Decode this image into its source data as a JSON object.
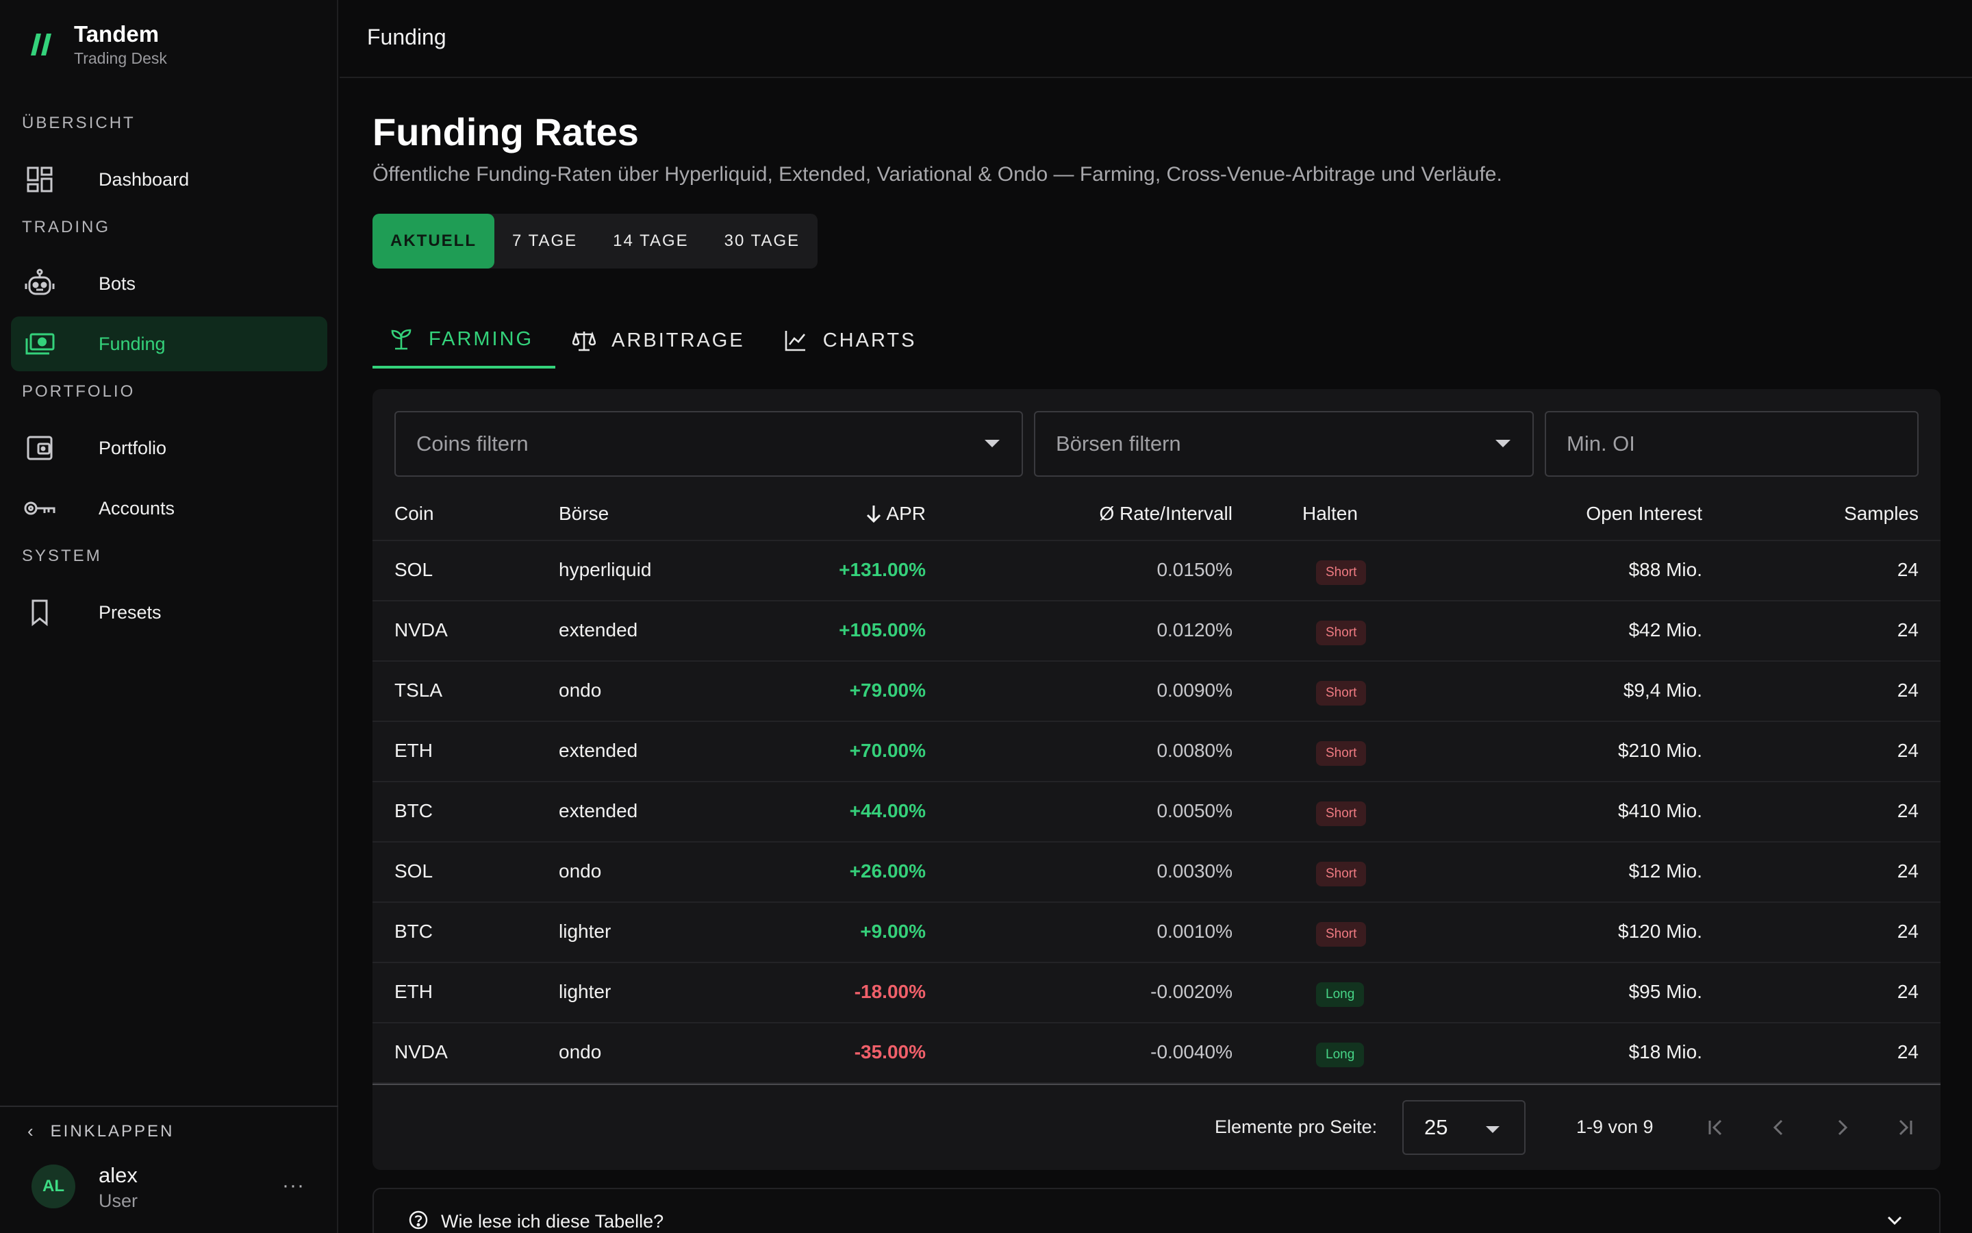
{
  "brand": {
    "name": "Tandem",
    "subtitle": "Trading Desk"
  },
  "sidebar": {
    "sections": [
      "ÜBERSICHT",
      "TRADING",
      "PORTFOLIO",
      "SYSTEM"
    ],
    "items": [
      {
        "label": "Dashboard",
        "icon": "dashboard-icon"
      },
      {
        "label": "Bots",
        "icon": "robot-icon"
      },
      {
        "label": "Funding",
        "icon": "money-icon",
        "active": true
      },
      {
        "label": "Portfolio",
        "icon": "wallet-icon"
      },
      {
        "label": "Accounts",
        "icon": "key-icon"
      },
      {
        "label": "Presets",
        "icon": "bookmark-icon"
      }
    ],
    "collapse_label": "EINKLAPPEN",
    "user": {
      "initials": "AL",
      "name": "alex",
      "role": "User",
      "more": "···"
    }
  },
  "topbar": {
    "title": "Funding"
  },
  "page": {
    "title": "Funding Rates",
    "subtitle": "Öffentliche Funding-Raten über Hyperliquid, Extended, Variational & Ondo — Farming, Cross-Venue-Arbitrage und Verläufe."
  },
  "periods": [
    "AKTUELL",
    "7 TAGE",
    "14 TAGE",
    "30 TAGE"
  ],
  "tabs": [
    "FARMING",
    "ARBITRAGE",
    "CHARTS"
  ],
  "filters": {
    "coins_placeholder": "Coins filtern",
    "exchanges_placeholder": "Börsen filtern",
    "min_oi_placeholder": "Min. OI"
  },
  "table": {
    "headers": {
      "coin": "Coin",
      "exchange": "Börse",
      "apr": "APR",
      "rate": "Ø Rate/Intervall",
      "hold": "Halten",
      "oi": "Open Interest",
      "samples": "Samples"
    },
    "rows": [
      {
        "coin": "SOL",
        "exchange": "hyperliquid",
        "apr": "+131.00%",
        "rate": "0.0150%",
        "hold": "Short",
        "oi": "$88 Mio.",
        "samples": "24"
      },
      {
        "coin": "NVDA",
        "exchange": "extended",
        "apr": "+105.00%",
        "rate": "0.0120%",
        "hold": "Short",
        "oi": "$42 Mio.",
        "samples": "24"
      },
      {
        "coin": "TSLA",
        "exchange": "ondo",
        "apr": "+79.00%",
        "rate": "0.0090%",
        "hold": "Short",
        "oi": "$9,4 Mio.",
        "samples": "24"
      },
      {
        "coin": "ETH",
        "exchange": "extended",
        "apr": "+70.00%",
        "rate": "0.0080%",
        "hold": "Short",
        "oi": "$210 Mio.",
        "samples": "24"
      },
      {
        "coin": "BTC",
        "exchange": "extended",
        "apr": "+44.00%",
        "rate": "0.0050%",
        "hold": "Short",
        "oi": "$410 Mio.",
        "samples": "24"
      },
      {
        "coin": "SOL",
        "exchange": "ondo",
        "apr": "+26.00%",
        "rate": "0.0030%",
        "hold": "Short",
        "oi": "$12 Mio.",
        "samples": "24"
      },
      {
        "coin": "BTC",
        "exchange": "lighter",
        "apr": "+9.00%",
        "rate": "0.0010%",
        "hold": "Short",
        "oi": "$120 Mio.",
        "samples": "24"
      },
      {
        "coin": "ETH",
        "exchange": "lighter",
        "apr": "-18.00%",
        "rate": "-0.0020%",
        "hold": "Long",
        "oi": "$95 Mio.",
        "samples": "24"
      },
      {
        "coin": "NVDA",
        "exchange": "ondo",
        "apr": "-35.00%",
        "rate": "-0.0040%",
        "hold": "Long",
        "oi": "$18 Mio.",
        "samples": "24"
      }
    ]
  },
  "pagination": {
    "per_page_label": "Elemente pro Seite:",
    "per_page": "25",
    "range": "1-9 von 9"
  },
  "help": {
    "label": "Wie lese ich diese Tabelle?"
  },
  "colors": {
    "accent": "#34d27b",
    "negative": "#f0606a",
    "background": "#0b0b0c"
  }
}
